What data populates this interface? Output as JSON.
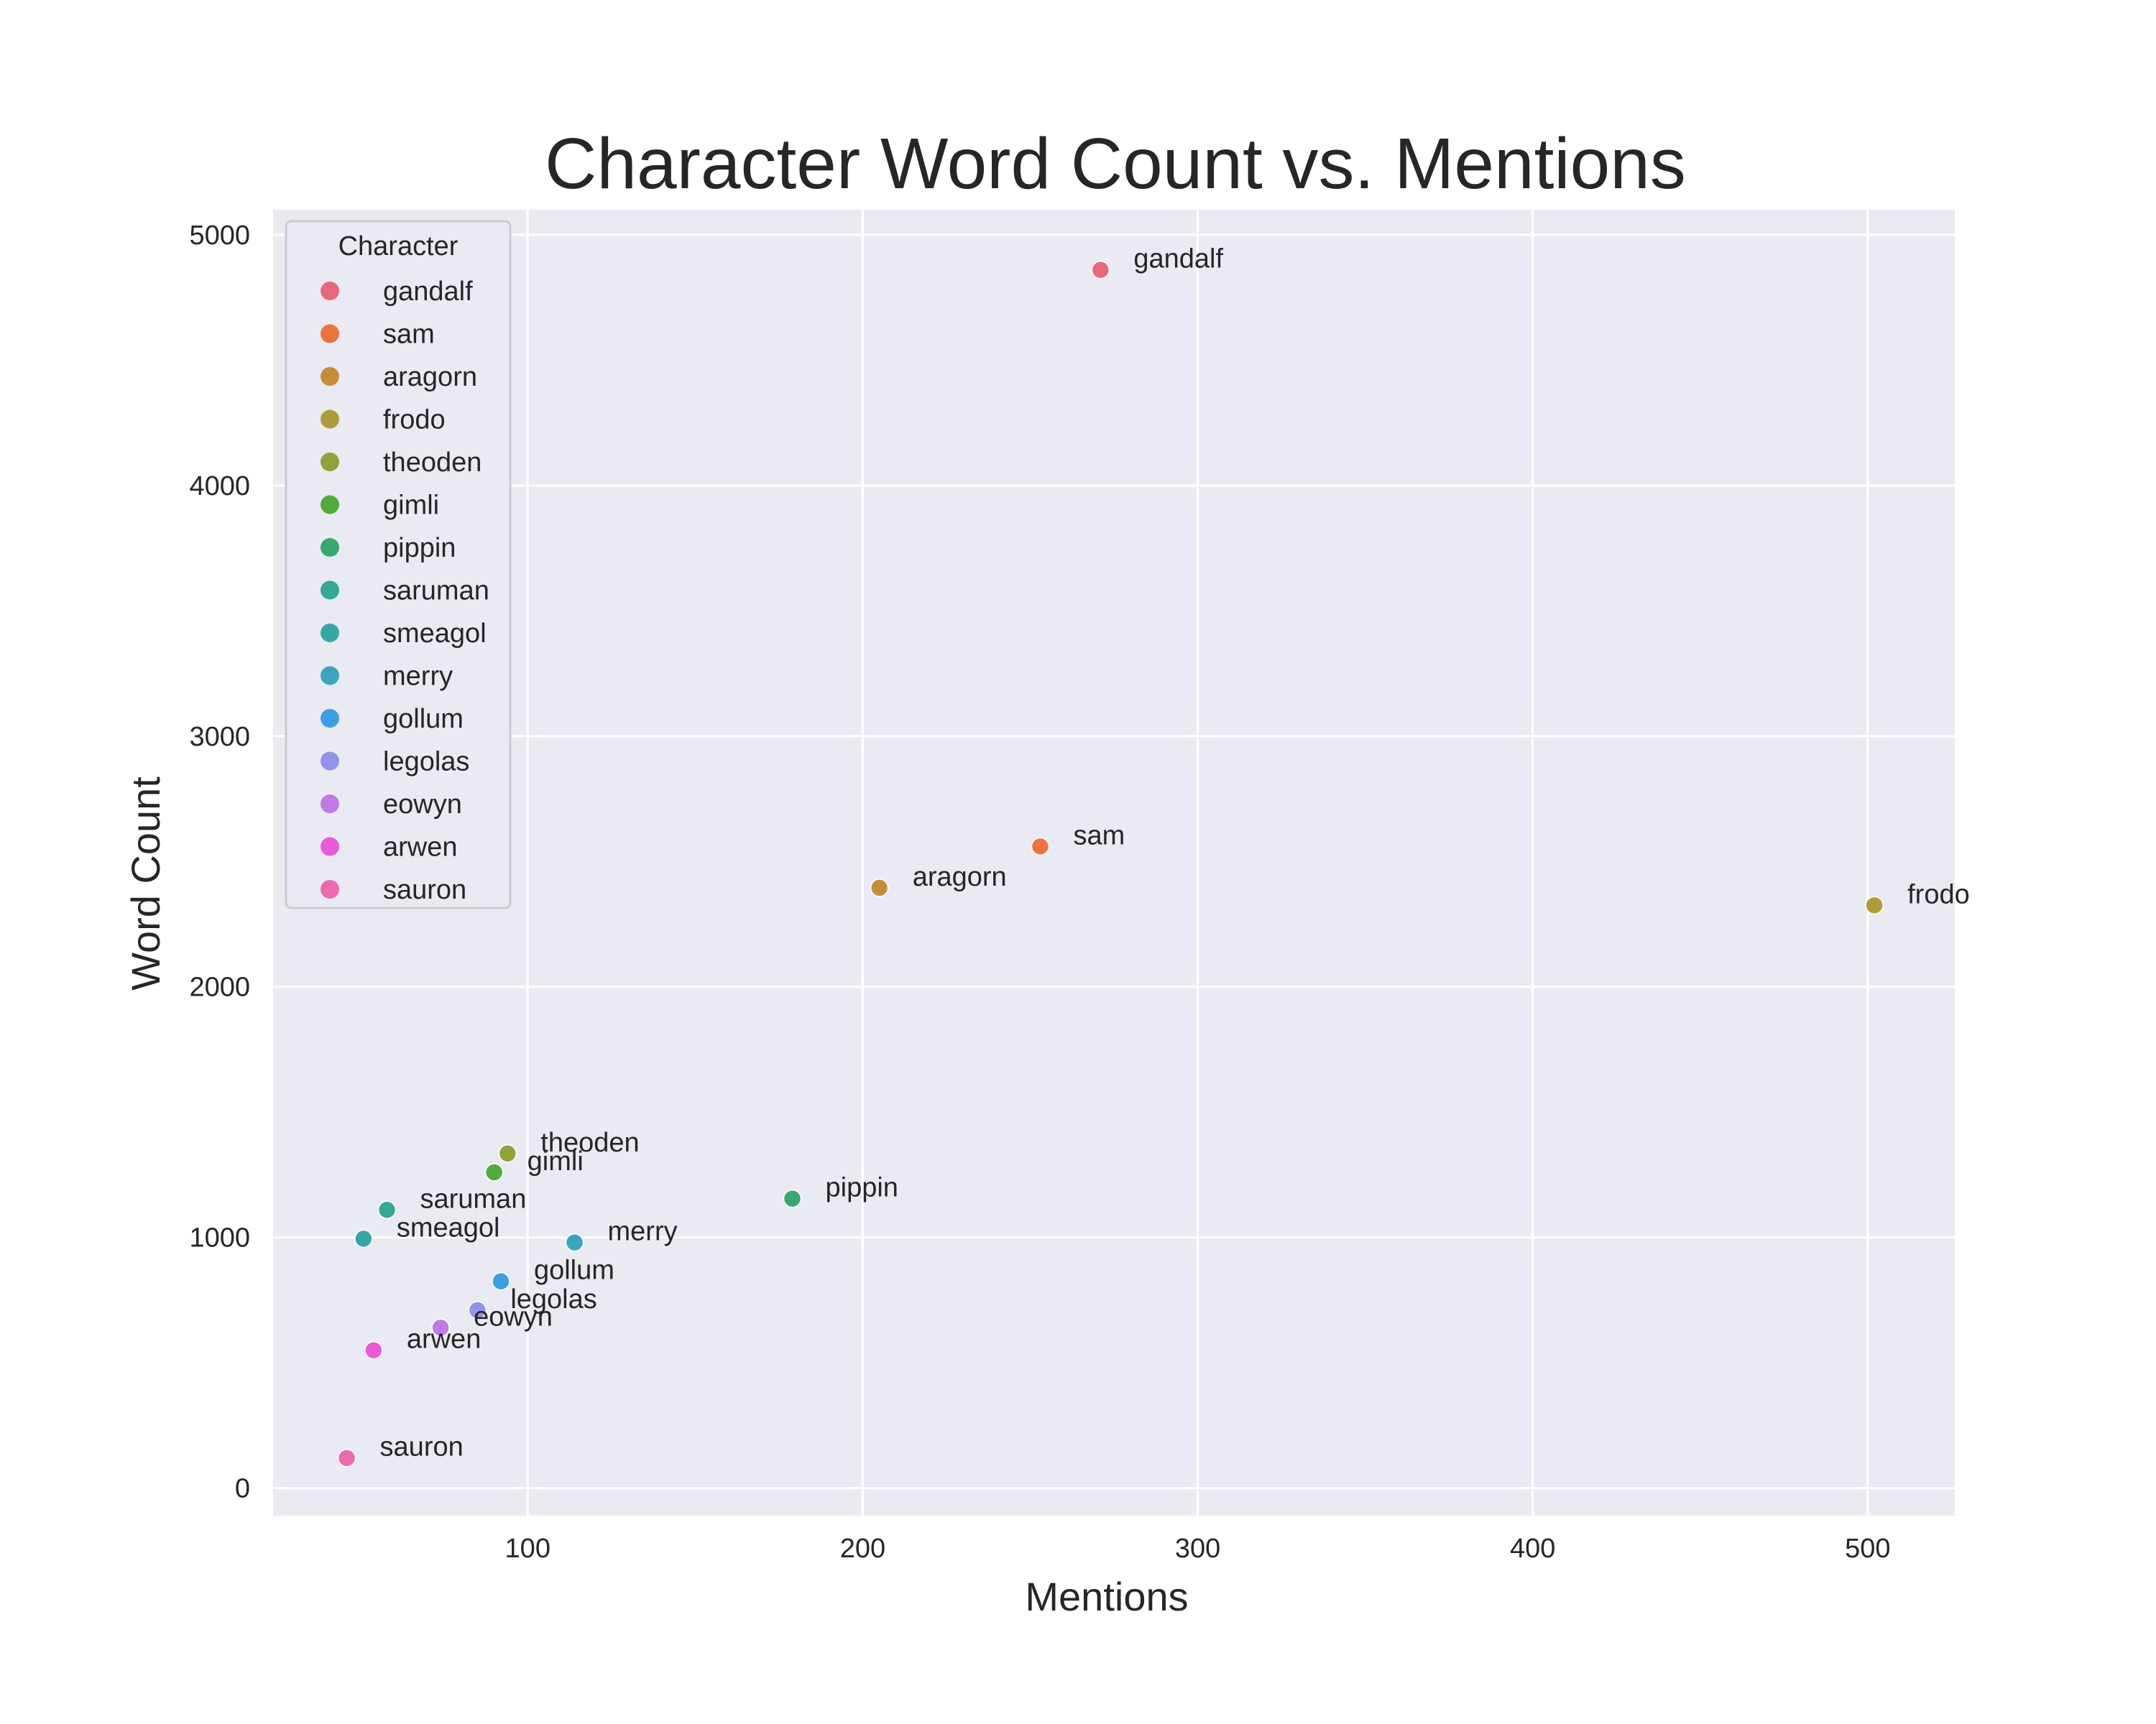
{
  "chart_data": {
    "type": "scatter",
    "title": "Character Word Count vs. Mentions",
    "xlabel": "Mentions",
    "ylabel": "Word Count",
    "xlim": [
      24,
      526
    ],
    "ylim": [
      -110,
      5100
    ],
    "xticks": [
      100,
      200,
      300,
      400,
      500
    ],
    "yticks": [
      0,
      1000,
      2000,
      3000,
      4000,
      5000
    ],
    "grid": true,
    "legend": {
      "title": "Character",
      "placement": "top-left"
    },
    "series": [
      {
        "name": "gandalf",
        "color": "#e6697a",
        "x": 271,
        "y": 4860
      },
      {
        "name": "sam",
        "color": "#eb733d",
        "x": 253,
        "y": 2560
      },
      {
        "name": "aragorn",
        "color": "#c48d3a",
        "x": 205,
        "y": 2395
      },
      {
        "name": "frodo",
        "color": "#ad9c37",
        "x": 502,
        "y": 2325
      },
      {
        "name": "theoden",
        "color": "#8fa33a",
        "x": 94,
        "y": 1335
      },
      {
        "name": "gimli",
        "color": "#52ab3a",
        "x": 90,
        "y": 1260
      },
      {
        "name": "pippin",
        "color": "#38a86f",
        "x": 179,
        "y": 1155
      },
      {
        "name": "saruman",
        "color": "#36a894",
        "x": 58,
        "y": 1110
      },
      {
        "name": "smeagol",
        "color": "#37a7a6",
        "x": 51,
        "y": 995
      },
      {
        "name": "merry",
        "color": "#39a6bd",
        "x": 114,
        "y": 980
      },
      {
        "name": "gollum",
        "color": "#3d9ee3",
        "x": 92,
        "y": 825
      },
      {
        "name": "legolas",
        "color": "#9293ea",
        "x": 85,
        "y": 710
      },
      {
        "name": "eowyn",
        "color": "#be7ae6",
        "x": 74,
        "y": 640
      },
      {
        "name": "arwen",
        "color": "#eb5ad9",
        "x": 54,
        "y": 550
      },
      {
        "name": "sauron",
        "color": "#ec6ab0",
        "x": 46,
        "y": 120
      }
    ]
  }
}
